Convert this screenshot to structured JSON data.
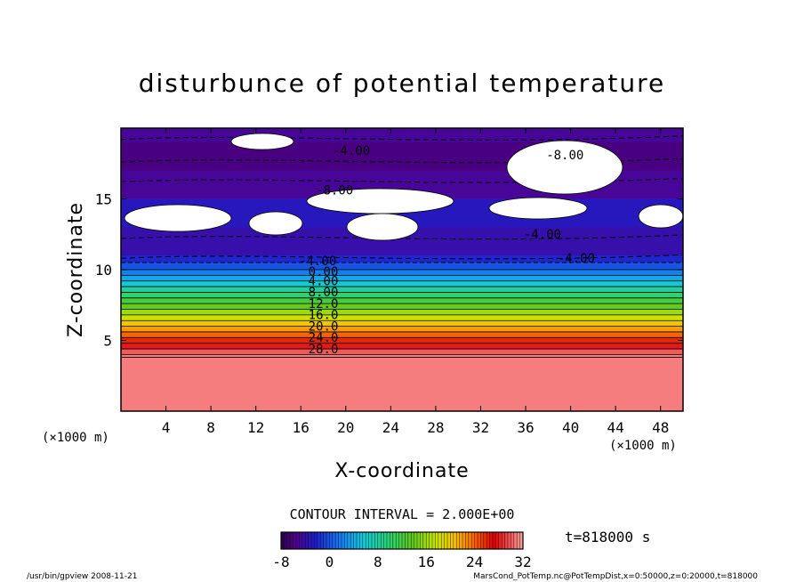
{
  "chart_data": {
    "type": "heatmap",
    "title": "disturbunce of potential temperature",
    "xlabel": "X-coordinate",
    "ylabel": "Z-coordinate",
    "x_unit": "(×1000 m)",
    "y_unit": "(×1000 m)",
    "xlim": [
      0,
      50
    ],
    "ylim": [
      0,
      20
    ],
    "x_ticks": [
      "4",
      "8",
      "12",
      "16",
      "20",
      "24",
      "28",
      "32",
      "36",
      "40",
      "44",
      "48"
    ],
    "y_ticks": [
      "5",
      "10",
      "15"
    ],
    "contour_labels": [
      "0.00",
      "4.00",
      "8.00",
      "12.0",
      "16.0",
      "20.0",
      "24.0",
      "28.0",
      "-4.00",
      "-8.00",
      "-4.00",
      "-4.00",
      "-4.00",
      "-8.00"
    ],
    "contour_interval": "CONTOUR INTERVAL = 2.000E+00",
    "colorbar": {
      "min": -8,
      "max": 32,
      "ticks": [
        "-8",
        "0",
        "8",
        "16",
        "24",
        "32"
      ]
    },
    "time_label": "t=818000 s",
    "bands": [
      {
        "z": 19.0,
        "value": -5
      },
      {
        "z": 17.0,
        "value": -6
      },
      {
        "z": 15.0,
        "value": -5
      },
      {
        "z": 13.0,
        "value": -3
      },
      {
        "z": 11.0,
        "value": -4
      },
      {
        "z": 10.5,
        "value": -2
      },
      {
        "z": 10.0,
        "value": 0
      },
      {
        "z": 9.6,
        "value": 2
      },
      {
        "z": 9.2,
        "value": 4
      },
      {
        "z": 8.8,
        "value": 6
      },
      {
        "z": 8.4,
        "value": 8
      },
      {
        "z": 8.0,
        "value": 10
      },
      {
        "z": 7.6,
        "value": 12
      },
      {
        "z": 7.2,
        "value": 14
      },
      {
        "z": 6.8,
        "value": 16
      },
      {
        "z": 6.4,
        "value": 18
      },
      {
        "z": 6.0,
        "value": 20
      },
      {
        "z": 5.6,
        "value": 22
      },
      {
        "z": 5.2,
        "value": 24
      },
      {
        "z": 4.8,
        "value": 26
      },
      {
        "z": 4.4,
        "value": 28
      },
      {
        "z": 4.0,
        "value": 30
      },
      {
        "z": 3.8,
        "value": 31
      }
    ]
  },
  "footer": {
    "left": "/usr/bin/gpview   2008-11-21",
    "right": "MarsCond_PotTemp.nc@PotTempDist,x=0:50000,z=0:20000,t=818000"
  }
}
